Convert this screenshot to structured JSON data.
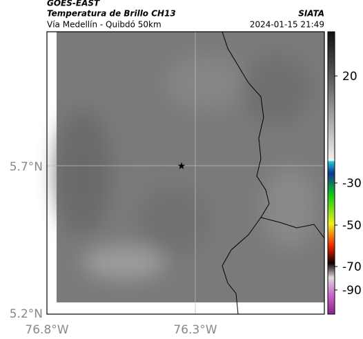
{
  "header": {
    "title": "GOES-EAST",
    "subtitle": "Temperatura de Brillo CH13",
    "region": "Vía Medellín - Quibdó 50km",
    "source": "SIATA",
    "datetime": "2024-01-15 21:49"
  },
  "axes": {
    "lat_labels": [
      "5.7°N",
      "5.2°N"
    ],
    "lon_labels": [
      "76.8°W",
      "76.3°W"
    ]
  },
  "colorbar": {
    "ticks": [
      20,
      -30,
      -50,
      -70,
      -90
    ]
  }
}
